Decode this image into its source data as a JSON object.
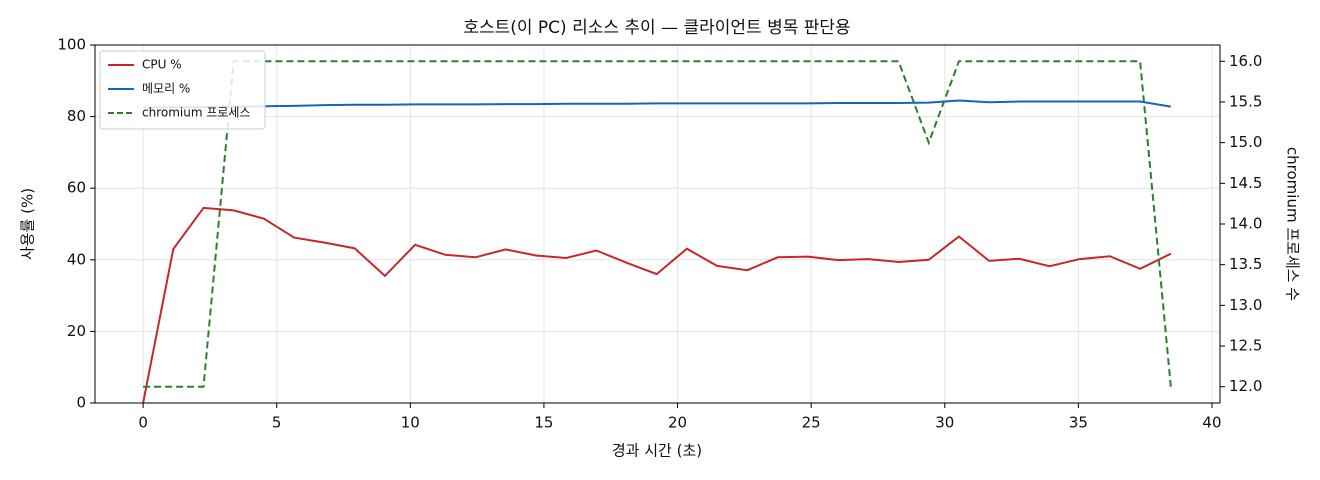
{
  "chart_data": {
    "type": "line",
    "title": "호스트(이 PC) 리소스 추이 — 클라이언트 병목 판단용",
    "x_label": "경과 시간 (초)",
    "y_label": "사용률 (%)",
    "y2_label": "chromium 프로세스 수",
    "x": [
      0,
      1.13,
      2.26,
      3.39,
      4.52,
      5.65,
      6.79,
      7.92,
      9.05,
      10.18,
      11.31,
      12.44,
      13.57,
      14.7,
      15.83,
      16.96,
      18.09,
      19.22,
      20.35,
      21.48,
      22.61,
      23.75,
      24.88,
      26.01,
      27.14,
      28.27,
      29.4,
      30.53,
      31.66,
      32.79,
      33.92,
      35.05,
      36.18,
      37.31,
      38.46
    ],
    "series": [
      {
        "name": "CPU %",
        "color": "#c62828",
        "axis": "y",
        "dash": false,
        "values": [
          0,
          43,
          54.5,
          53.8,
          51.5,
          46.2,
          44.8,
          43.2,
          35.5,
          44.2,
          41.4,
          40.7,
          42.9,
          41.2,
          40.5,
          42.6,
          39.2,
          36.0,
          43.1,
          38.3,
          37.1,
          40.7,
          40.9,
          39.9,
          40.2,
          39.4,
          40.0,
          46.5,
          39.7,
          40.3,
          38.2,
          40.2,
          41.0,
          37.5,
          41.7
        ]
      },
      {
        "name": "메모리 %",
        "color": "#1565c0",
        "axis": "y",
        "dash": false,
        "values": [
          82.5,
          82.6,
          82.7,
          82.8,
          82.9,
          83.0,
          83.2,
          83.3,
          83.3,
          83.4,
          83.4,
          83.4,
          83.5,
          83.5,
          83.6,
          83.6,
          83.6,
          83.7,
          83.7,
          83.7,
          83.7,
          83.7,
          83.7,
          83.8,
          83.8,
          83.8,
          83.9,
          84.5,
          84.0,
          84.2,
          84.2,
          84.2,
          84.2,
          84.2,
          82.8
        ]
      },
      {
        "name": "chromium 프로세스",
        "color": "#2e7d32",
        "axis": "y2",
        "dash": true,
        "values": [
          12,
          12,
          12,
          16,
          16,
          16,
          16,
          16,
          16,
          16,
          16,
          16,
          16,
          16,
          16,
          16,
          16,
          16,
          16,
          16,
          16,
          16,
          16,
          16,
          16,
          16,
          15,
          16,
          16,
          16,
          16,
          16,
          16,
          16,
          12
        ]
      }
    ],
    "xlim": [
      -1.8,
      40.3
    ],
    "xticks": [
      0,
      5,
      10,
      15,
      20,
      25,
      30,
      35,
      40
    ],
    "ylim": [
      0,
      100
    ],
    "yticks": [
      0,
      20,
      40,
      60,
      80,
      100
    ],
    "y2lim": [
      11.8,
      16.2
    ],
    "y2ticks": [
      {
        "value": 12,
        "label": "12.0"
      },
      {
        "value": 12.5,
        "label": "12.5"
      },
      {
        "value": 13,
        "label": "13.0"
      },
      {
        "value": 13.5,
        "label": "13.5"
      },
      {
        "value": 14,
        "label": "14.0"
      },
      {
        "value": 14.5,
        "label": "14.5"
      },
      {
        "value": 15,
        "label": "15.0"
      },
      {
        "value": 15.5,
        "label": "15.5"
      },
      {
        "value": 16,
        "label": "16.0"
      }
    ],
    "grid": true,
    "legend": "upper-left"
  }
}
